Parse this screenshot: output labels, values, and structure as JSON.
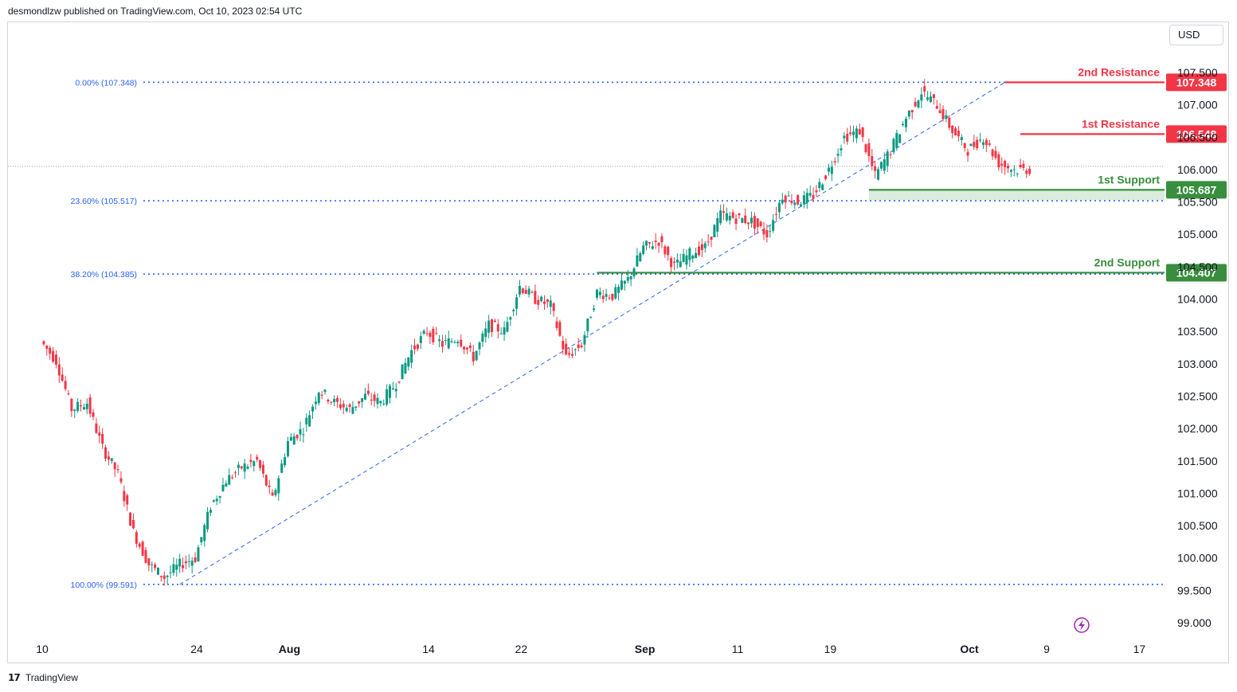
{
  "header": {
    "published": "desmondlzw published on TradingView.com, Oct 10, 2023 02:54 UTC"
  },
  "currency_button": "USD",
  "footer": {
    "brand": "TradingView",
    "logo_icon": "tradingview-logo-icon"
  },
  "colors": {
    "resistance": "#f23645",
    "support": "#388e3c",
    "fib": "#2962ff",
    "bull": "#089981",
    "bear": "#f23645",
    "text_fib": "#2962ff",
    "flash_icon": "#9c27b0"
  },
  "chart_data": {
    "type": "candlestick",
    "instrument_currency": "USD",
    "y_axis": {
      "ylim": [
        98.8,
        107.9
      ],
      "ticks": [
        "99.000",
        "99.500",
        "100.000",
        "100.500",
        "101.000",
        "101.500",
        "102.000",
        "102.500",
        "103.000",
        "103.500",
        "104.000",
        "104.500",
        "105.000",
        "105.500",
        "106.000",
        "106.500",
        "107.000",
        "107.500"
      ]
    },
    "x_axis": {
      "ticks": [
        {
          "label": "10",
          "bar": 0
        },
        {
          "label": "24",
          "bar": 10
        },
        {
          "label": "Aug",
          "bar": 16
        },
        {
          "label": "14",
          "bar": 25
        },
        {
          "label": "22",
          "bar": 31
        },
        {
          "label": "Sep",
          "bar": 39
        },
        {
          "label": "11",
          "bar": 45
        },
        {
          "label": "19",
          "bar": 51
        },
        {
          "label": "Oct",
          "bar": 60
        },
        {
          "label": "9",
          "bar": 65
        },
        {
          "label": "17",
          "bar": 71
        }
      ],
      "bold_ticks": [
        "Aug",
        "Sep",
        "Oct"
      ]
    },
    "bar_days": 67,
    "daily_path": [
      [
        0,
        103.35
      ],
      [
        1,
        103.05
      ],
      [
        2,
        102.3
      ],
      [
        3,
        102.4
      ],
      [
        4,
        101.7
      ],
      [
        5,
        101.3
      ],
      [
        6,
        100.4
      ],
      [
        7,
        99.9
      ],
      [
        8,
        99.7
      ],
      [
        9,
        99.9
      ],
      [
        10,
        100.0
      ],
      [
        11,
        100.8
      ],
      [
        12,
        101.2
      ],
      [
        13,
        101.4
      ],
      [
        14,
        101.5
      ],
      [
        15,
        100.9
      ],
      [
        16,
        101.8
      ],
      [
        17,
        102.0
      ],
      [
        18,
        102.6
      ],
      [
        19,
        102.4
      ],
      [
        20,
        102.3
      ],
      [
        21,
        102.5
      ],
      [
        22,
        102.4
      ],
      [
        23,
        102.7
      ],
      [
        24,
        103.2
      ],
      [
        25,
        103.5
      ],
      [
        26,
        103.3
      ],
      [
        27,
        103.4
      ],
      [
        28,
        103.1
      ],
      [
        29,
        103.6
      ],
      [
        30,
        103.5
      ],
      [
        31,
        104.2
      ],
      [
        32,
        104.0
      ],
      [
        33,
        103.9
      ],
      [
        34,
        103.1
      ],
      [
        35,
        103.3
      ],
      [
        36,
        104.1
      ],
      [
        37,
        104.05
      ],
      [
        38,
        104.3
      ],
      [
        39,
        104.8
      ],
      [
        40,
        104.9
      ],
      [
        41,
        104.5
      ],
      [
        42,
        104.7
      ],
      [
        43,
        104.8
      ],
      [
        44,
        105.3
      ],
      [
        45,
        105.25
      ],
      [
        46,
        105.2
      ],
      [
        47,
        105.0
      ],
      [
        48,
        105.6
      ],
      [
        49,
        105.5
      ],
      [
        50,
        105.6
      ],
      [
        51,
        106.0
      ],
      [
        52,
        106.5
      ],
      [
        53,
        106.6
      ],
      [
        54,
        105.9
      ],
      [
        55,
        106.3
      ],
      [
        56,
        106.8
      ],
      [
        57,
        107.2
      ],
      [
        58,
        107.0
      ],
      [
        59,
        106.6
      ],
      [
        60,
        106.3
      ],
      [
        61,
        106.5
      ],
      [
        62,
        106.1
      ],
      [
        63,
        106.0
      ],
      [
        64,
        106.0
      ]
    ],
    "candles_per_bar": 5,
    "fibonacci": {
      "levels": [
        {
          "label": "0.00% (107.348)",
          "value": 107.348
        },
        {
          "label": "23.60% (105.517)",
          "value": 105.517
        },
        {
          "label": "38.20% (104.385)",
          "value": 104.385
        },
        {
          "label": "100.00% (99.591)",
          "value": 99.591
        }
      ],
      "trend_line": {
        "from": {
          "bar": 8.9,
          "value": 99.591
        },
        "to": {
          "bar": 62.3,
          "value": 107.348
        }
      }
    },
    "levels": [
      {
        "name": "2nd Resistance",
        "value": 107.348,
        "price_label": "107.348",
        "kind": "resistance",
        "from_bar": 62.3
      },
      {
        "name": "1st Resistance",
        "value": 106.548,
        "price_label": "106.548",
        "kind": "resistance",
        "from_bar": 63.3
      },
      {
        "name": "1st Support",
        "value": 105.687,
        "price_label": "105.687",
        "kind": "support",
        "from_bar": 53.5
      },
      {
        "name": "2nd Support",
        "value": 104.407,
        "price_label": "104.407",
        "kind": "support",
        "from_bar": 35.9
      }
    ],
    "support_zone": {
      "from": 105.687,
      "to": 105.6,
      "from_bar": 53.5
    },
    "last_price": 106.05,
    "legend": "none",
    "grid": false
  }
}
